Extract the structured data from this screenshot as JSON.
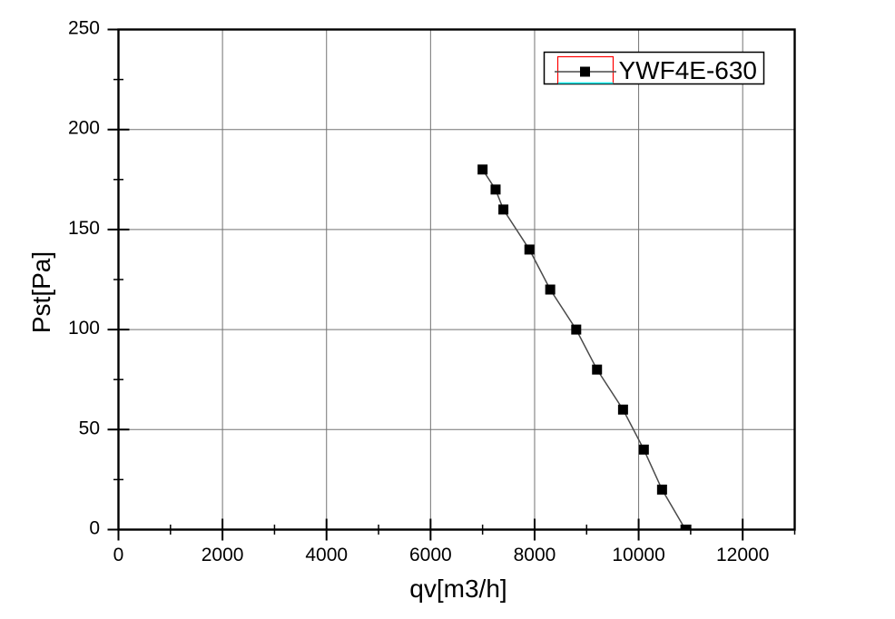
{
  "chart_data": {
    "type": "line",
    "title": "",
    "xlabel": "qv[m3/h]",
    "ylabel": "Pst[Pa]",
    "xlim": [
      0,
      13000
    ],
    "ylim": [
      0,
      250
    ],
    "x_major_ticks": [
      0,
      2000,
      4000,
      6000,
      8000,
      10000,
      12000
    ],
    "x_minor_ticks": [
      1000,
      3000,
      5000,
      7000,
      9000,
      11000,
      13000
    ],
    "y_major_ticks": [
      0,
      50,
      100,
      150,
      200,
      250
    ],
    "y_minor_ticks": [
      25,
      75,
      125,
      175,
      225
    ],
    "grid": "major-both",
    "legend_position": "top-right",
    "series": [
      {
        "name": "YWF4E-630",
        "marker": "filled-square",
        "marker_color": "#000000",
        "line_color": "#4a4a4a",
        "points": [
          [
            7000,
            180
          ],
          [
            7250,
            170
          ],
          [
            7400,
            160
          ],
          [
            7900,
            140
          ],
          [
            8300,
            120
          ],
          [
            8800,
            100
          ],
          [
            9200,
            80
          ],
          [
            9700,
            60
          ],
          [
            10100,
            40
          ],
          [
            10450,
            20
          ],
          [
            10900,
            0
          ]
        ]
      }
    ]
  },
  "colors": {
    "background": "#ffffff",
    "frame": "#000000",
    "grid": "#737373",
    "tick": "#000000",
    "text": "#000000",
    "legend_border": "#000000",
    "legend_fill": "#ffffff",
    "legend_highlight_border": "#ff0000",
    "legend_highlight_underline": "#00ffff"
  }
}
